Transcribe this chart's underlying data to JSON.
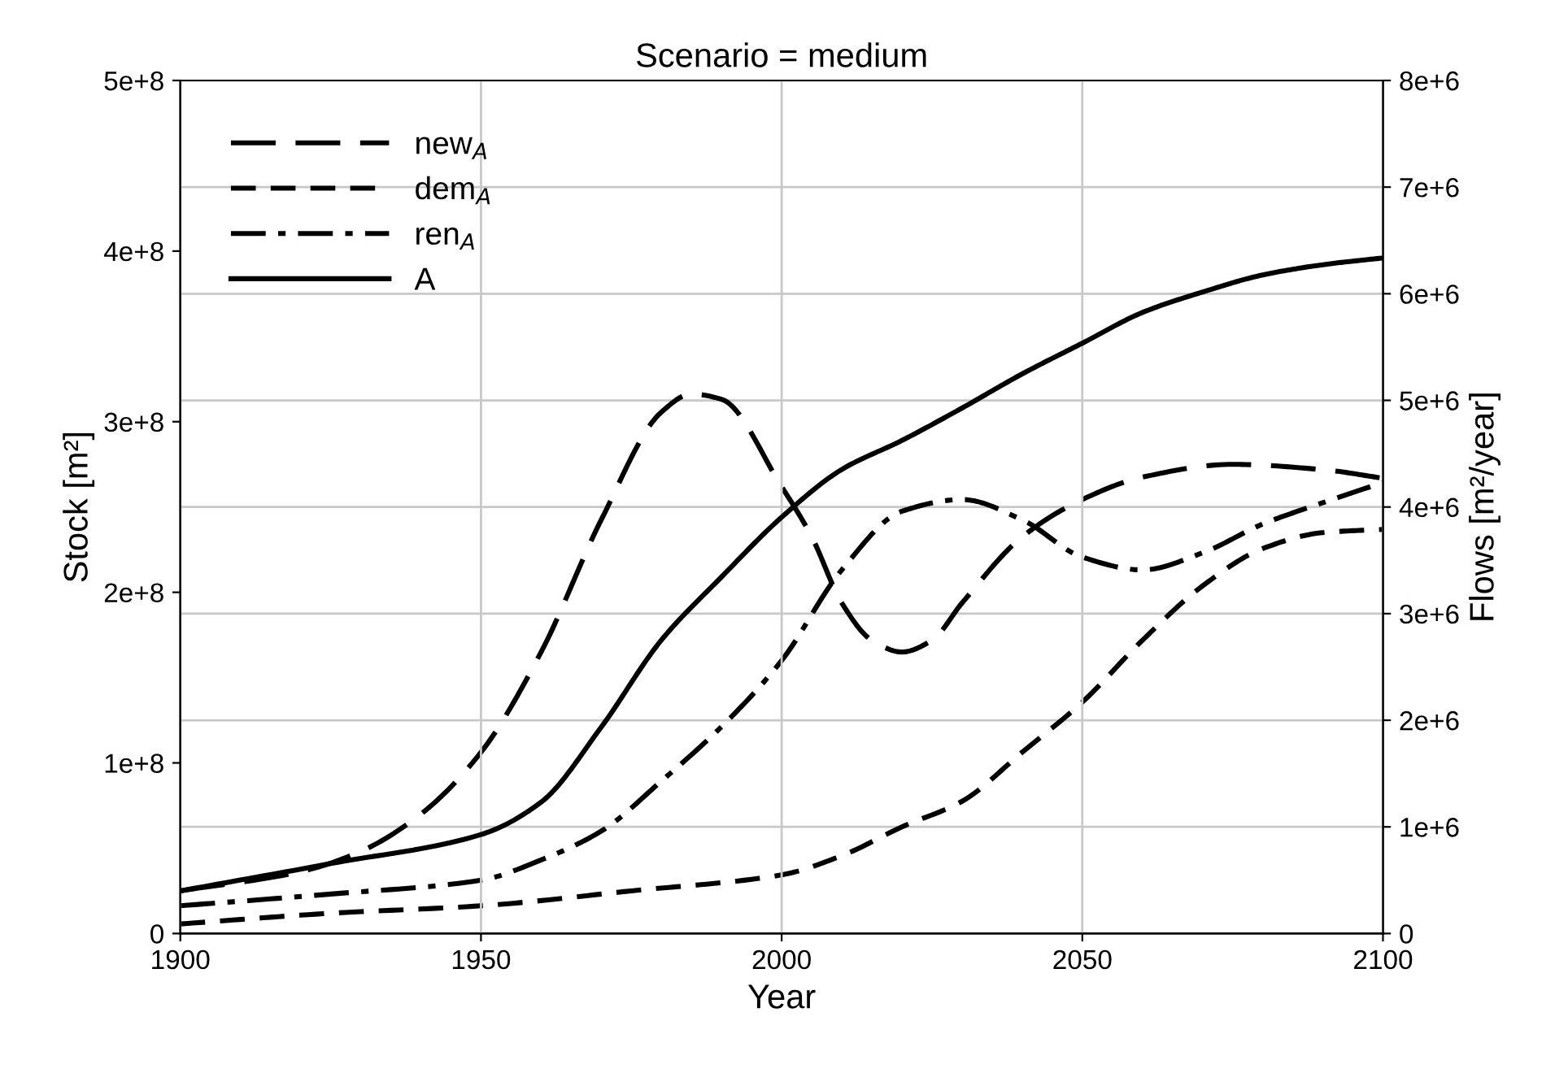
{
  "chart_data": {
    "type": "line",
    "title": "Scenario = medium",
    "xlabel": "Year",
    "ylabel": "Stock [m²]",
    "y2label": "Flows [m²/year]",
    "xlim": [
      1900,
      2100
    ],
    "xticks": [
      1900,
      1950,
      2000,
      2050,
      2100
    ],
    "ylim": [
      0,
      500000000
    ],
    "yticks": [
      0,
      {
        "value": 100000000,
        "label": "1e+8"
      },
      {
        "value": 200000000,
        "label": "2e+8"
      },
      {
        "value": 300000000,
        "label": "3e+8"
      },
      {
        "value": 400000000,
        "label": "4e+8"
      },
      {
        "value": 500000000,
        "label": "5e+8"
      }
    ],
    "y2lim": [
      0,
      8000000
    ],
    "y2ticks": [
      0,
      {
        "value": 1000000,
        "label": "1e+6"
      },
      {
        "value": 2000000,
        "label": "2e+6"
      },
      {
        "value": 3000000,
        "label": "3e+6"
      },
      {
        "value": 4000000,
        "label": "4e+6"
      },
      {
        "value": 5000000,
        "label": "5e+6"
      },
      {
        "value": 6000000,
        "label": "6e+6"
      },
      {
        "value": 7000000,
        "label": "7e+6"
      },
      {
        "value": 8000000,
        "label": "8e+6"
      }
    ],
    "grid": true,
    "legend": "top left",
    "marker": "none",
    "series": [
      {
        "name": "new$_{A}$",
        "color": "#000000",
        "axis": "y2",
        "line_style": "long dashed",
        "x": [
          1900,
          1920,
          1930,
          1940,
          1950,
          1960,
          1970,
          1980,
          1985,
          1990,
          2000,
          2005,
          2010,
          2015,
          2020,
          2025,
          2030,
          2040,
          2050,
          2060,
          2075,
          2090,
          2100
        ],
        "values": [
          400000,
          580000,
          770000,
          1120000,
          1700000,
          2640000,
          3880000,
          4890000,
          5060000,
          5010000,
          4190000,
          3720000,
          3100000,
          2750000,
          2640000,
          2750000,
          3100000,
          3720000,
          4070000,
          4280000,
          4400000,
          4350000,
          4270000
        ]
      },
      {
        "name": "dem$_{A}$",
        "color": "#000000",
        "axis": "y2",
        "line_style": "dashed",
        "x": [
          1900,
          1925,
          1950,
          1975,
          2000,
          2010,
          2020,
          2030,
          2040,
          2050,
          2060,
          2070,
          2080,
          2090,
          2100
        ],
        "values": [
          90000,
          190000,
          260000,
          400000,
          550000,
          730000,
          1000000,
          1240000,
          1700000,
          2170000,
          2750000,
          3260000,
          3610000,
          3760000,
          3790000
        ]
      },
      {
        "name": "ren$_{A}$",
        "color": "#000000",
        "axis": "y2",
        "line_style": "dashdot",
        "x": [
          1900,
          1925,
          1950,
          1960,
          1970,
          1980,
          1990,
          2000,
          2010,
          2020,
          2030,
          2040,
          2050,
          2060,
          2070,
          2080,
          2090,
          2100
        ],
        "values": [
          260000,
          370000,
          500000,
          690000,
          960000,
          1430000,
          1940000,
          2560000,
          3410000,
          3960000,
          4070000,
          3880000,
          3530000,
          3410000,
          3570000,
          3840000,
          4040000,
          4230000
        ]
      },
      {
        "name": "A",
        "color": "#000000",
        "axis": "y",
        "line_style": "solid",
        "x": [
          1900,
          1925,
          1950,
          1960,
          1970,
          1980,
          1990,
          2000,
          2010,
          2020,
          2030,
          2040,
          2050,
          2060,
          2070,
          2080,
          2090,
          2100
        ],
        "values": [
          25000000,
          41000000,
          58000000,
          77000000,
          121000000,
          172000000,
          209000000,
          244000000,
          272000000,
          289000000,
          308000000,
          328000000,
          346000000,
          364000000,
          376000000,
          386000000,
          392000000,
          396000000
        ]
      }
    ]
  }
}
